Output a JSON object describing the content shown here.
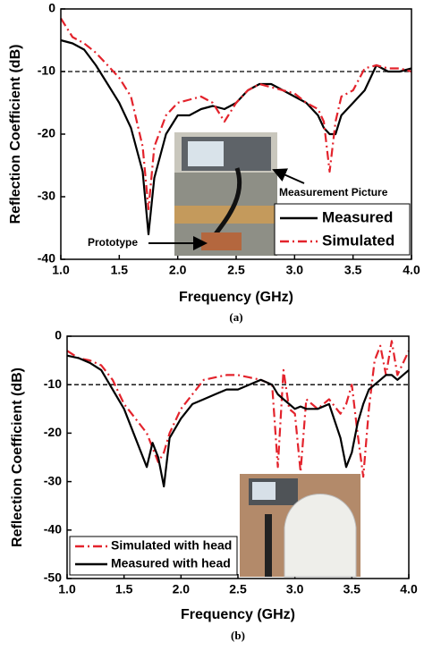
{
  "chart_data": [
    {
      "type": "line",
      "caption": "(a)",
      "x_label": "Frequency (GHz)",
      "y_label": "Reflection Coefficient (dB)",
      "x": [
        1.0,
        1.1,
        1.2,
        1.3,
        1.4,
        1.5,
        1.6,
        1.7,
        1.75,
        1.8,
        1.9,
        2.0,
        2.1,
        2.2,
        2.3,
        2.4,
        2.5,
        2.6,
        2.7,
        2.8,
        2.9,
        3.0,
        3.1,
        3.2,
        3.25,
        3.3,
        3.35,
        3.4,
        3.5,
        3.6,
        3.7,
        3.8,
        3.9,
        4.0
      ],
      "series": [
        {
          "name": "Measured",
          "color": "#000000",
          "style": "solid",
          "values": [
            -5,
            -5.5,
            -6.5,
            -9,
            -12,
            -15,
            -19,
            -26,
            -36,
            -27,
            -20,
            -17,
            -17,
            -16,
            -15.5,
            -16,
            -15,
            -13,
            -12,
            -12,
            -13,
            -14,
            -15,
            -17,
            -19,
            -20,
            -20,
            -17,
            -15,
            -13,
            -9,
            -10,
            -10,
            -9.5
          ]
        },
        {
          "name": "Simulated",
          "color": "#e3232c",
          "style": "dashdot",
          "values": [
            -1.5,
            -4.5,
            -5.5,
            -7,
            -9,
            -11,
            -14,
            -22,
            -32,
            -22,
            -17,
            -15,
            -14.5,
            -14,
            -15,
            -18,
            -15,
            -13,
            -12,
            -12.5,
            -13,
            -13.5,
            -15,
            -16,
            -18,
            -26,
            -18,
            -14,
            -13,
            -9.5,
            -9,
            -9.5,
            -9.5,
            -10
          ]
        }
      ],
      "xlim": [
        1.0,
        4.0
      ],
      "ylim": [
        -40,
        0
      ],
      "xticks": [
        {
          "value": 1.0,
          "label": "1.0"
        },
        1.5,
        {
          "value": 2.0,
          "label": "2.0"
        },
        2.5,
        {
          "value": 3.0,
          "label": "3.0"
        },
        3.5,
        {
          "value": 4.0,
          "label": "4.0"
        }
      ],
      "yticks": [
        0,
        -10,
        -20,
        -30,
        -40
      ],
      "reference_line": -10,
      "legend": "lower right",
      "annotations": [
        {
          "text": "Measurement Picture"
        },
        {
          "text": "Prototype"
        }
      ]
    },
    {
      "type": "line",
      "caption": "(b)",
      "x_label": "Frequency (GHz)",
      "y_label": "Reflection Coefficient (dB)",
      "x": [
        1.0,
        1.1,
        1.2,
        1.3,
        1.4,
        1.5,
        1.6,
        1.7,
        1.75,
        1.8,
        1.85,
        1.9,
        2.0,
        2.1,
        2.2,
        2.3,
        2.4,
        2.5,
        2.6,
        2.7,
        2.8,
        2.85,
        2.9,
        2.95,
        3.0,
        3.05,
        3.1,
        3.2,
        3.3,
        3.4,
        3.45,
        3.5,
        3.55,
        3.6,
        3.65,
        3.7,
        3.75,
        3.8,
        3.85,
        3.9,
        4.0
      ],
      "series": [
        {
          "name": "Simulated with head",
          "color": "#e3232c",
          "style": "dashdot",
          "values": [
            -3,
            -4.5,
            -5,
            -6,
            -9,
            -14,
            -17,
            -20,
            -23,
            -26,
            -24,
            -20,
            -15,
            -12,
            -9,
            -8.5,
            -8,
            -8,
            -8.5,
            -9,
            -10,
            -27,
            -7,
            -15,
            -16,
            -28,
            -13,
            -15,
            -13,
            -16,
            -14,
            -10,
            -20,
            -29,
            -15,
            -5,
            -2,
            -8,
            -1,
            -8,
            -3
          ]
        },
        {
          "name": "Measured with head",
          "color": "#000000",
          "style": "solid",
          "values": [
            -4,
            -4.5,
            -5.5,
            -7,
            -11,
            -15,
            -21,
            -27,
            -22,
            -25,
            -31,
            -21,
            -17,
            -14,
            -13,
            -12,
            -11,
            -11,
            -10,
            -9,
            -10,
            -12,
            -13,
            -14,
            -15,
            -14.5,
            -15,
            -15,
            -14,
            -21,
            -27,
            -24,
            -18,
            -14,
            -11,
            -10,
            -9,
            -8,
            -8,
            -9,
            -7
          ]
        }
      ],
      "xlim": [
        1.0,
        4.0
      ],
      "ylim": [
        -50,
        0
      ],
      "xticks": [
        {
          "value": 1.0,
          "label": "1.0"
        },
        1.5,
        {
          "value": 2.0,
          "label": "2.0"
        },
        2.5,
        {
          "value": 3.0,
          "label": "3.0"
        },
        3.5,
        {
          "value": 4.0,
          "label": "4.0"
        }
      ],
      "yticks": [
        0,
        -10,
        -20,
        -30,
        -40,
        -50
      ],
      "reference_line": -10,
      "legend": "lower left"
    }
  ]
}
